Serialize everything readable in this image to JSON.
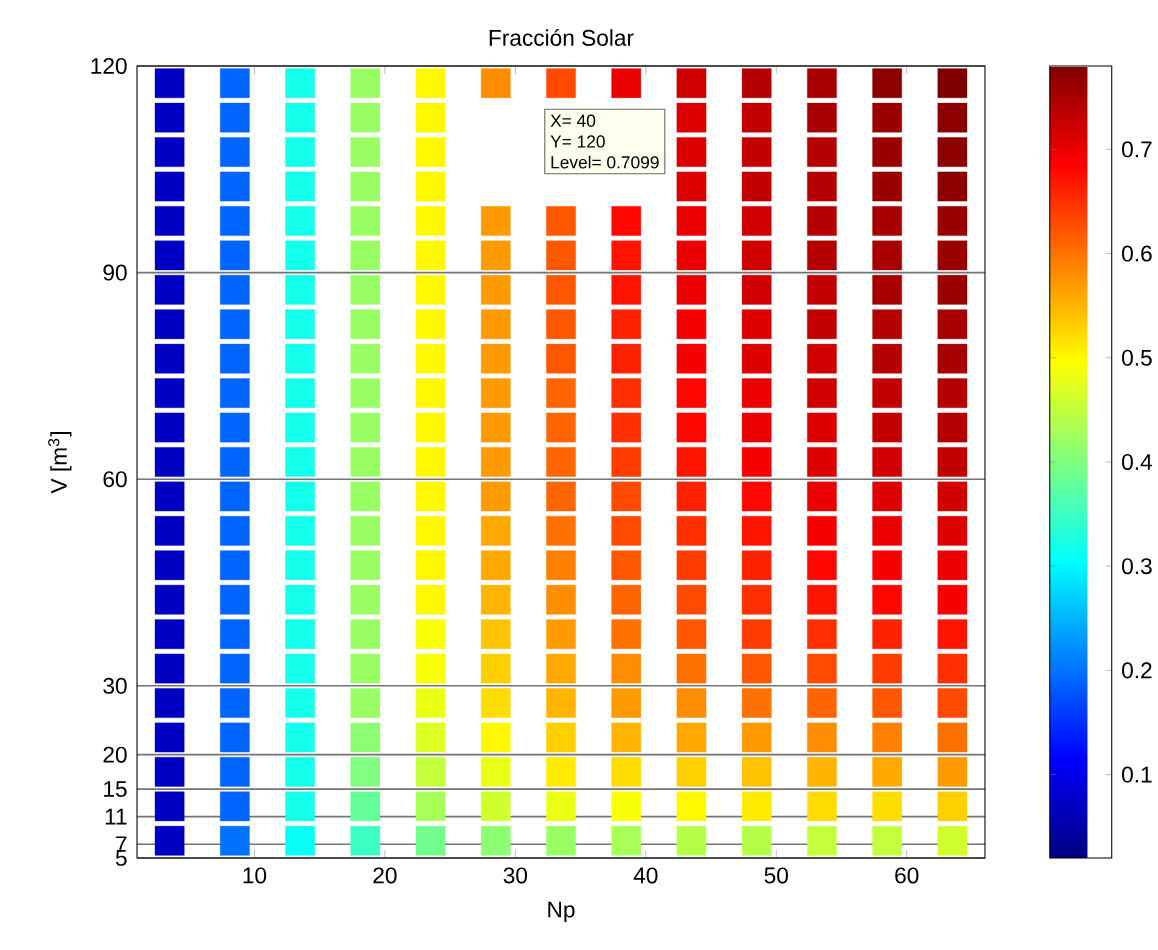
{
  "chart_data": {
    "type": "scatter",
    "title": "Fracción Solar",
    "xlabel": "Np",
    "ylabel": "V [m$^{3}$]",
    "xlim": [
      1,
      66
    ],
    "xticks": [
      10,
      20,
      30,
      40,
      50,
      60
    ],
    "ylim": [
      5,
      120
    ],
    "yticks": [
      5,
      7,
      11,
      15,
      20,
      30,
      60,
      90,
      120
    ],
    "grid": "y",
    "marker": "square",
    "clim": [
      0.02,
      0.78
    ],
    "cticks": [
      0.1,
      0.2,
      0.3,
      0.4,
      0.5,
      0.6,
      0.7
    ],
    "x": [
      3.5,
      8.5,
      13.5,
      18.5,
      23.5,
      28.5,
      33.5,
      38.5,
      43.5,
      48.5,
      53.5,
      58.5,
      63.5,
      3.5,
      8.5,
      13.5,
      18.5,
      23.5,
      28.5,
      33.5,
      38.5,
      43.5,
      48.5,
      53.5,
      58.5,
      63.5,
      3.5,
      8.5,
      13.5,
      18.5,
      23.5,
      28.5,
      33.5,
      38.5,
      43.5,
      48.5,
      53.5,
      58.5,
      63.5,
      3.5,
      8.5,
      13.5,
      18.5,
      23.5,
      28.5,
      33.5,
      38.5,
      43.5,
      48.5,
      53.5,
      58.5,
      63.5,
      3.5,
      8.5,
      13.5,
      18.5,
      23.5,
      28.5,
      33.5,
      38.5,
      43.5,
      48.5,
      53.5,
      58.5,
      63.5,
      3.5,
      8.5,
      13.5,
      18.5,
      23.5,
      28.5,
      33.5,
      38.5,
      43.5,
      48.5,
      53.5,
      58.5,
      63.5,
      3.5,
      8.5,
      13.5,
      18.5,
      23.5,
      28.5,
      33.5,
      38.5,
      43.5,
      48.5,
      53.5,
      58.5,
      63.5,
      3.5,
      8.5,
      13.5,
      18.5,
      23.5,
      28.5,
      33.5,
      38.5,
      43.5,
      48.5,
      53.5,
      58.5,
      63.5,
      3.5,
      8.5,
      13.5,
      18.5,
      23.5,
      28.5,
      33.5,
      38.5,
      43.5,
      48.5,
      53.5,
      58.5,
      63.5,
      3.5,
      8.5,
      13.5,
      18.5,
      23.5,
      28.5,
      33.5,
      38.5,
      43.5,
      48.5,
      53.5,
      58.5,
      63.5,
      3.5,
      8.5,
      13.5,
      18.5,
      23.5,
      28.5,
      33.5,
      38.5,
      43.5,
      48.5,
      53.5,
      58.5,
      63.5,
      3.5,
      8.5,
      13.5,
      18.5,
      23.5,
      28.5,
      33.5,
      38.5,
      43.5,
      48.5,
      53.5,
      58.5,
      63.5,
      3.5,
      8.5,
      13.5,
      18.5,
      23.5,
      28.5,
      33.5,
      38.5,
      43.5,
      48.5,
      53.5,
      58.5,
      63.5,
      3.5,
      8.5,
      13.5,
      18.5,
      23.5,
      28.5,
      33.5,
      38.5,
      43.5,
      48.5,
      53.5,
      58.5,
      63.5,
      3.5,
      8.5,
      13.5,
      18.5,
      23.5,
      28.5,
      33.5,
      38.5,
      43.5,
      48.5,
      53.5,
      58.5,
      63.5,
      3.5,
      8.5,
      13.5,
      18.5,
      23.5,
      28.5,
      33.5,
      38.5,
      43.5,
      48.5,
      53.5,
      58.5,
      63.5,
      3.5,
      8.5,
      13.5,
      18.5,
      23.5,
      28.5,
      33.5,
      38.5,
      43.5,
      48.5,
      53.5,
      58.5,
      63.5,
      3.5,
      8.5,
      13.5,
      18.5,
      23.5,
      28.5,
      33.5,
      38.5,
      43.5,
      48.5,
      53.5,
      58.5,
      63.5,
      3.5,
      8.5,
      13.5,
      18.5,
      23.5,
      28.5,
      33.5,
      38.5,
      43.5,
      48.5,
      53.5,
      58.5,
      63.5,
      3.5,
      8.5,
      13.5,
      18.5,
      23.5,
      28.5,
      33.5,
      38.5,
      43.5,
      48.5,
      53.5,
      58.5,
      63.5,
      3.5,
      8.5,
      13.5,
      18.5,
      23.5,
      28.5,
      33.5,
      38.5,
      43.5,
      48.5,
      53.5,
      58.5,
      63.5,
      3.5,
      8.5,
      13.5,
      18.5,
      23.5,
      28.5,
      33.5,
      38.5,
      43.5,
      48.5,
      53.5,
      58.5,
      63.5,
      3.5,
      8.5,
      13.5,
      18.5,
      23.5,
      28.5,
      33.5,
      38.5,
      43.5,
      48.5,
      53.5,
      58.5,
      63.5
    ],
    "values": [
      117.5,
      117.5,
      117.5,
      117.5,
      117.5,
      117.5,
      117.5,
      117.5,
      117.5,
      117.5,
      117.5,
      117.5,
      117.5,
      112.5,
      112.5,
      112.5,
      112.5,
      112.5,
      null,
      null,
      null,
      112.5,
      112.5,
      112.5,
      112.5,
      112.5,
      107.5,
      107.5,
      107.5,
      107.5,
      107.5,
      null,
      null,
      null,
      107.5,
      107.5,
      107.5,
      107.5,
      107.5,
      102.5,
      102.5,
      102.5,
      102.5,
      102.5,
      null,
      null,
      null,
      102.5,
      102.5,
      102.5,
      102.5,
      102.5,
      97.5,
      97.5,
      97.5,
      97.5,
      97.5,
      97.5,
      97.5,
      97.5,
      97.5,
      97.5,
      97.5,
      97.5,
      97.5,
      92.5,
      92.5,
      92.5,
      92.5,
      92.5,
      92.5,
      92.5,
      92.5,
      92.5,
      92.5,
      92.5,
      92.5,
      92.5,
      87.5,
      87.5,
      87.5,
      87.5,
      87.5,
      87.5,
      87.5,
      87.5,
      87.5,
      87.5,
      87.5,
      87.5,
      87.5,
      82.5,
      82.5,
      82.5,
      82.5,
      82.5,
      82.5,
      82.5,
      82.5,
      82.5,
      82.5,
      82.5,
      82.5,
      82.5,
      77.5,
      77.5,
      77.5,
      77.5,
      77.5,
      77.5,
      77.5,
      77.5,
      77.5,
      77.5,
      77.5,
      77.5,
      77.5,
      72.5,
      72.5,
      72.5,
      72.5,
      72.5,
      72.5,
      72.5,
      72.5,
      72.5,
      72.5,
      72.5,
      72.5,
      72.5,
      67.5,
      67.5,
      67.5,
      67.5,
      67.5,
      67.5,
      67.5,
      67.5,
      67.5,
      67.5,
      67.5,
      67.5,
      67.5,
      62.5,
      62.5,
      62.5,
      62.5,
      62.5,
      62.5,
      62.5,
      62.5,
      62.5,
      62.5,
      62.5,
      62.5,
      62.5,
      57.5,
      57.5,
      57.5,
      57.5,
      57.5,
      57.5,
      57.5,
      57.5,
      57.5,
      57.5,
      57.5,
      57.5,
      57.5,
      52.5,
      52.5,
      52.5,
      52.5,
      52.5,
      52.5,
      52.5,
      52.5,
      52.5,
      52.5,
      52.5,
      52.5,
      52.5,
      47.5,
      47.5,
      47.5,
      47.5,
      47.5,
      47.5,
      47.5,
      47.5,
      47.5,
      47.5,
      47.5,
      47.5,
      47.5,
      42.5,
      42.5,
      42.5,
      42.5,
      42.5,
      42.5,
      42.5,
      42.5,
      42.5,
      42.5,
      42.5,
      42.5,
      42.5,
      37.5,
      37.5,
      37.5,
      37.5,
      37.5,
      37.5,
      37.5,
      37.5,
      37.5,
      37.5,
      37.5,
      37.5,
      37.5,
      32.5,
      32.5,
      32.5,
      32.5,
      32.5,
      32.5,
      32.5,
      32.5,
      32.5,
      32.5,
      32.5,
      32.5,
      32.5,
      27.5,
      27.5,
      27.5,
      27.5,
      27.5,
      27.5,
      27.5,
      27.5,
      27.5,
      27.5,
      27.5,
      27.5,
      27.5,
      22.5,
      22.5,
      22.5,
      22.5,
      22.5,
      22.5,
      22.5,
      22.5,
      22.5,
      22.5,
      22.5,
      22.5,
      22.5,
      17.5,
      17.5,
      17.5,
      17.5,
      17.5,
      17.5,
      17.5,
      17.5,
      17.5,
      17.5,
      17.5,
      17.5,
      17.5,
      12.5,
      12.5,
      12.5,
      12.5,
      12.5,
      12.5,
      12.5,
      12.5,
      12.5,
      12.5,
      12.5,
      12.5,
      12.5,
      7.5,
      7.5,
      7.5,
      7.5,
      7.5,
      7.5,
      7.5,
      7.5,
      7.5,
      7.5,
      7.5,
      7.5,
      7.5
    ],
    "cvalues": [
      0.07,
      0.19,
      0.32,
      0.42,
      0.5,
      0.58,
      0.63,
      0.7,
      0.72,
      0.74,
      0.75,
      0.77,
      0.78,
      0.07,
      0.19,
      0.32,
      0.42,
      0.5,
      null,
      null,
      null,
      0.71,
      0.73,
      0.75,
      0.76,
      0.77,
      0.07,
      0.19,
      0.32,
      0.42,
      0.5,
      null,
      null,
      null,
      0.71,
      0.73,
      0.74,
      0.76,
      0.77,
      0.07,
      0.19,
      0.32,
      0.42,
      0.5,
      null,
      null,
      null,
      0.71,
      0.73,
      0.74,
      0.76,
      0.77,
      0.07,
      0.19,
      0.32,
      0.42,
      0.5,
      0.57,
      0.62,
      0.68,
      0.7,
      0.72,
      0.74,
      0.75,
      0.76,
      0.07,
      0.19,
      0.32,
      0.42,
      0.5,
      0.57,
      0.62,
      0.67,
      0.7,
      0.72,
      0.74,
      0.75,
      0.76,
      0.07,
      0.19,
      0.32,
      0.42,
      0.5,
      0.57,
      0.62,
      0.67,
      0.7,
      0.72,
      0.73,
      0.75,
      0.76,
      0.07,
      0.19,
      0.32,
      0.42,
      0.5,
      0.57,
      0.62,
      0.66,
      0.69,
      0.71,
      0.73,
      0.74,
      0.75,
      0.07,
      0.19,
      0.32,
      0.42,
      0.5,
      0.57,
      0.62,
      0.66,
      0.69,
      0.71,
      0.72,
      0.74,
      0.75,
      0.07,
      0.19,
      0.32,
      0.42,
      0.5,
      0.57,
      0.61,
      0.65,
      0.68,
      0.7,
      0.72,
      0.73,
      0.74,
      0.07,
      0.19,
      0.32,
      0.42,
      0.5,
      0.57,
      0.61,
      0.65,
      0.68,
      0.7,
      0.71,
      0.73,
      0.74,
      0.07,
      0.19,
      0.32,
      0.42,
      0.5,
      0.57,
      0.61,
      0.64,
      0.67,
      0.69,
      0.71,
      0.72,
      0.73,
      0.07,
      0.19,
      0.32,
      0.42,
      0.5,
      0.57,
      0.61,
      0.63,
      0.66,
      0.68,
      0.7,
      0.71,
      0.72,
      0.07,
      0.19,
      0.32,
      0.42,
      0.5,
      0.56,
      0.6,
      0.63,
      0.65,
      0.67,
      0.69,
      0.7,
      0.71,
      0.07,
      0.19,
      0.32,
      0.42,
      0.5,
      0.56,
      0.59,
      0.62,
      0.64,
      0.66,
      0.68,
      0.69,
      0.7,
      0.07,
      0.19,
      0.32,
      0.42,
      0.5,
      0.55,
      0.58,
      0.61,
      0.63,
      0.65,
      0.67,
      0.68,
      0.69,
      0.07,
      0.19,
      0.32,
      0.42,
      0.49,
      0.54,
      0.57,
      0.6,
      0.62,
      0.64,
      0.65,
      0.66,
      0.67,
      0.07,
      0.19,
      0.32,
      0.42,
      0.49,
      0.53,
      0.56,
      0.58,
      0.6,
      0.62,
      0.63,
      0.64,
      0.65,
      0.07,
      0.19,
      0.32,
      0.42,
      0.48,
      0.52,
      0.55,
      0.57,
      0.58,
      0.6,
      0.61,
      0.62,
      0.63,
      0.07,
      0.19,
      0.32,
      0.41,
      0.47,
      0.5,
      0.53,
      0.55,
      0.56,
      0.57,
      0.58,
      0.59,
      0.6,
      0.07,
      0.19,
      0.32,
      0.4,
      0.45,
      0.48,
      0.51,
      0.52,
      0.53,
      0.54,
      0.55,
      0.56,
      0.57,
      0.07,
      0.19,
      0.32,
      0.38,
      0.43,
      0.46,
      0.48,
      0.49,
      0.5,
      0.51,
      0.52,
      0.52,
      0.53,
      0.07,
      0.2,
      0.31,
      0.35,
      0.39,
      0.41,
      0.42,
      0.43,
      0.44,
      0.44,
      0.45,
      0.45,
      0.46
    ],
    "annotations": [
      "X= 40",
      "Y= 120",
      "Level= 0.7099"
    ]
  }
}
